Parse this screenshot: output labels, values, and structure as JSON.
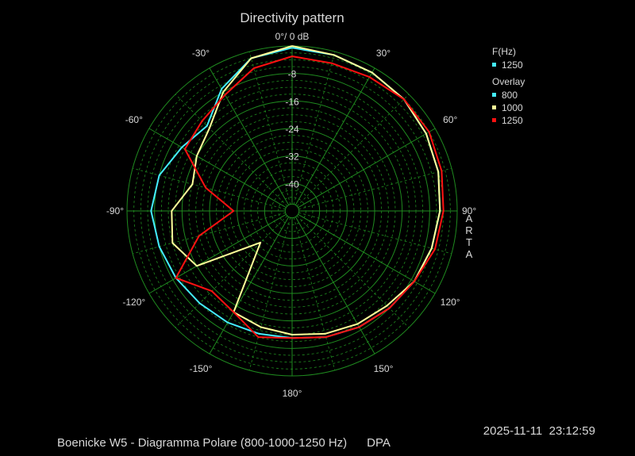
{
  "chart_data": {
    "type": "polar",
    "title": "Directivity pattern",
    "reference_label": "0°/ 0 dB",
    "radial_unit": "dB",
    "radial_range": [
      -48,
      0
    ],
    "radial_ticks": [
      -8,
      -16,
      -24,
      -32,
      -40
    ],
    "angle_ticks": [
      "0°/ 0 dB",
      "30°",
      "60°",
      "90°",
      "120°",
      "150°",
      "180°",
      "-150°",
      "-120°",
      "-90°",
      "-60°",
      "-30°"
    ],
    "grid": true,
    "side_label": "ARTA",
    "legend": {
      "group1_title": "F(Hz)",
      "group1_items": [
        {
          "label": "1250",
          "color": "#44eeff"
        }
      ],
      "group2_title": "Overlay",
      "group2_items": [
        {
          "label": "800",
          "color": "#44eeff"
        },
        {
          "label": "1000",
          "color": "#ffff99"
        },
        {
          "label": "1250",
          "color": "#ff1111"
        }
      ]
    },
    "angles": [
      0,
      15,
      30,
      45,
      60,
      75,
      90,
      105,
      120,
      135,
      150,
      165,
      180,
      -165,
      -150,
      -135,
      -120,
      -105,
      -90,
      -75,
      -60,
      -45,
      -30,
      -15
    ],
    "series": [
      {
        "name": "800",
        "color": "#44eeff",
        "values": [
          -0.5,
          -1,
          -1.5,
          -2,
          -3,
          -4,
          -5,
          -6,
          -7,
          -8,
          -9,
          -10,
          -11,
          -11,
          -10.5,
          -10,
          -9,
          -8,
          -7,
          -8,
          -11,
          -13,
          -7,
          -2
        ]
      },
      {
        "name": "1000",
        "color": "#ffff99",
        "values": [
          0,
          -1,
          -1.5,
          -2,
          -3,
          -4,
          -5,
          -6,
          -7,
          -9,
          -10,
          -11,
          -12,
          -13,
          -14,
          -35,
          -16,
          -12,
          -13,
          -18,
          -16,
          -14,
          -8,
          -2
        ]
      },
      {
        "name": "1250",
        "color": "#ff1111",
        "values": [
          -3,
          -3.5,
          -3,
          -2,
          -2,
          -3,
          -4,
          -5,
          -7,
          -8,
          -9,
          -10,
          -11,
          -10,
          -14,
          -15,
          -9,
          -20,
          -31,
          -22,
          -12,
          -11,
          -9,
          -5
        ]
      }
    ]
  },
  "footer": {
    "caption": "Boenicke W5 - Diagramma Polare (800-1000-1250 Hz)      DPA",
    "timestamp": "2025-11-11  23:12:59"
  }
}
